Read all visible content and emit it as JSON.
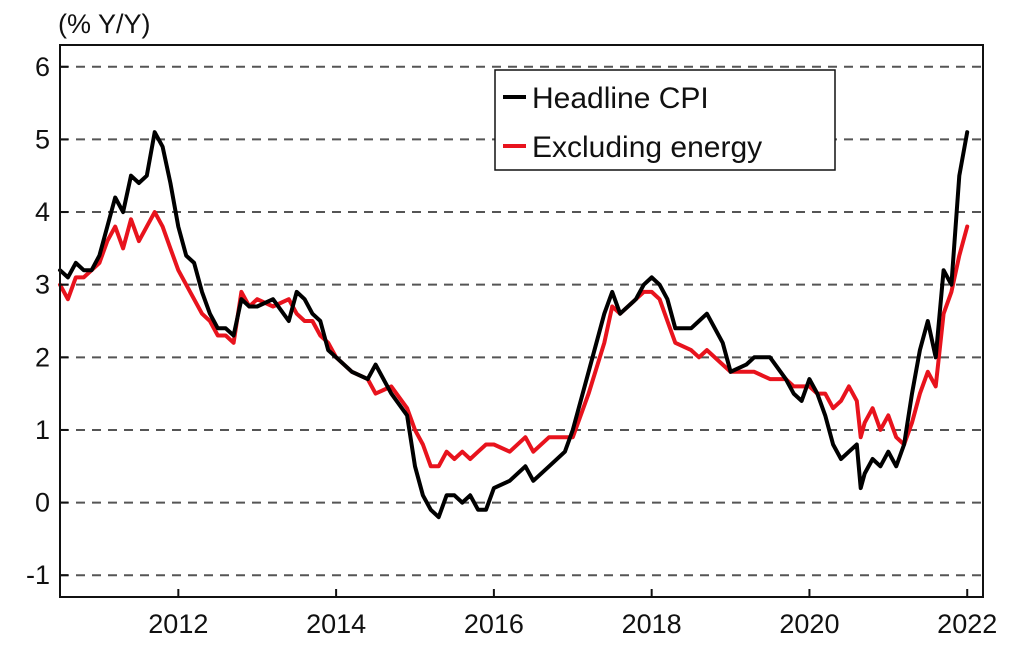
{
  "chart_data": {
    "type": "line",
    "unit_label": "(% Y/Y)",
    "x_ticks": [
      "2012",
      "2014",
      "2016",
      "2018",
      "2020",
      "2022"
    ],
    "y_ticks": [
      "6",
      "5",
      "4",
      "3",
      "2",
      "1",
      "0",
      "-1"
    ],
    "xlim": [
      2010.5,
      2022.2
    ],
    "ylim": [
      -1.3,
      6.3
    ],
    "grid": "horizontal dashed",
    "legend_position": "top-right",
    "series": [
      {
        "name": "Headline CPI",
        "color": "#000000",
        "points": [
          [
            2010.5,
            3.2
          ],
          [
            2010.6,
            3.1
          ],
          [
            2010.7,
            3.3
          ],
          [
            2010.8,
            3.2
          ],
          [
            2010.9,
            3.2
          ],
          [
            2011.0,
            3.4
          ],
          [
            2011.1,
            3.8
          ],
          [
            2011.2,
            4.2
          ],
          [
            2011.3,
            4.0
          ],
          [
            2011.4,
            4.5
          ],
          [
            2011.5,
            4.4
          ],
          [
            2011.6,
            4.5
          ],
          [
            2011.7,
            5.1
          ],
          [
            2011.8,
            4.9
          ],
          [
            2011.9,
            4.4
          ],
          [
            2012.0,
            3.8
          ],
          [
            2012.1,
            3.4
          ],
          [
            2012.2,
            3.3
          ],
          [
            2012.3,
            2.9
          ],
          [
            2012.4,
            2.6
          ],
          [
            2012.5,
            2.4
          ],
          [
            2012.6,
            2.4
          ],
          [
            2012.7,
            2.3
          ],
          [
            2012.8,
            2.8
          ],
          [
            2012.9,
            2.7
          ],
          [
            2013.0,
            2.7
          ],
          [
            2013.2,
            2.8
          ],
          [
            2013.4,
            2.5
          ],
          [
            2013.5,
            2.9
          ],
          [
            2013.6,
            2.8
          ],
          [
            2013.7,
            2.6
          ],
          [
            2013.8,
            2.5
          ],
          [
            2013.9,
            2.1
          ],
          [
            2014.0,
            2.0
          ],
          [
            2014.2,
            1.8
          ],
          [
            2014.4,
            1.7
          ],
          [
            2014.5,
            1.9
          ],
          [
            2014.7,
            1.5
          ],
          [
            2014.9,
            1.2
          ],
          [
            2015.0,
            0.5
          ],
          [
            2015.1,
            0.1
          ],
          [
            2015.2,
            -0.1
          ],
          [
            2015.3,
            -0.2
          ],
          [
            2015.4,
            0.1
          ],
          [
            2015.5,
            0.1
          ],
          [
            2015.6,
            0.0
          ],
          [
            2015.7,
            0.1
          ],
          [
            2015.8,
            -0.1
          ],
          [
            2015.9,
            -0.1
          ],
          [
            2016.0,
            0.2
          ],
          [
            2016.2,
            0.3
          ],
          [
            2016.4,
            0.5
          ],
          [
            2016.5,
            0.3
          ],
          [
            2016.7,
            0.5
          ],
          [
            2016.9,
            0.7
          ],
          [
            2017.0,
            1.0
          ],
          [
            2017.2,
            1.8
          ],
          [
            2017.4,
            2.6
          ],
          [
            2017.5,
            2.9
          ],
          [
            2017.6,
            2.6
          ],
          [
            2017.8,
            2.8
          ],
          [
            2017.9,
            3.0
          ],
          [
            2018.0,
            3.1
          ],
          [
            2018.1,
            3.0
          ],
          [
            2018.2,
            2.8
          ],
          [
            2018.3,
            2.4
          ],
          [
            2018.5,
            2.4
          ],
          [
            2018.6,
            2.5
          ],
          [
            2018.7,
            2.6
          ],
          [
            2018.9,
            2.2
          ],
          [
            2019.0,
            1.8
          ],
          [
            2019.2,
            1.9
          ],
          [
            2019.3,
            2.0
          ],
          [
            2019.5,
            2.0
          ],
          [
            2019.7,
            1.7
          ],
          [
            2019.8,
            1.5
          ],
          [
            2019.9,
            1.4
          ],
          [
            2020.0,
            1.7
          ],
          [
            2020.1,
            1.5
          ],
          [
            2020.2,
            1.2
          ],
          [
            2020.3,
            0.8
          ],
          [
            2020.4,
            0.6
          ],
          [
            2020.5,
            0.7
          ],
          [
            2020.6,
            0.8
          ],
          [
            2020.65,
            0.2
          ],
          [
            2020.7,
            0.4
          ],
          [
            2020.8,
            0.6
          ],
          [
            2020.9,
            0.5
          ],
          [
            2021.0,
            0.7
          ],
          [
            2021.1,
            0.5
          ],
          [
            2021.2,
            0.8
          ],
          [
            2021.3,
            1.5
          ],
          [
            2021.4,
            2.1
          ],
          [
            2021.5,
            2.5
          ],
          [
            2021.6,
            2.0
          ],
          [
            2021.7,
            3.2
          ],
          [
            2021.8,
            3.0
          ],
          [
            2021.9,
            4.5
          ],
          [
            2022.0,
            5.1
          ]
        ]
      },
      {
        "name": "Excluding energy",
        "color": "#e8131d",
        "points": [
          [
            2010.5,
            3.0
          ],
          [
            2010.6,
            2.8
          ],
          [
            2010.7,
            3.1
          ],
          [
            2010.8,
            3.1
          ],
          [
            2010.9,
            3.2
          ],
          [
            2011.0,
            3.3
          ],
          [
            2011.1,
            3.6
          ],
          [
            2011.2,
            3.8
          ],
          [
            2011.3,
            3.5
          ],
          [
            2011.4,
            3.9
          ],
          [
            2011.5,
            3.6
          ],
          [
            2011.6,
            3.8
          ],
          [
            2011.7,
            4.0
          ],
          [
            2011.8,
            3.8
          ],
          [
            2011.9,
            3.5
          ],
          [
            2012.0,
            3.2
          ],
          [
            2012.1,
            3.0
          ],
          [
            2012.2,
            2.8
          ],
          [
            2012.3,
            2.6
          ],
          [
            2012.4,
            2.5
          ],
          [
            2012.5,
            2.3
          ],
          [
            2012.6,
            2.3
          ],
          [
            2012.7,
            2.2
          ],
          [
            2012.8,
            2.9
          ],
          [
            2012.9,
            2.7
          ],
          [
            2013.0,
            2.8
          ],
          [
            2013.2,
            2.7
          ],
          [
            2013.4,
            2.8
          ],
          [
            2013.5,
            2.6
          ],
          [
            2013.6,
            2.5
          ],
          [
            2013.7,
            2.5
          ],
          [
            2013.8,
            2.3
          ],
          [
            2013.9,
            2.2
          ],
          [
            2014.0,
            2.0
          ],
          [
            2014.2,
            1.8
          ],
          [
            2014.4,
            1.7
          ],
          [
            2014.5,
            1.5
          ],
          [
            2014.7,
            1.6
          ],
          [
            2014.9,
            1.3
          ],
          [
            2015.0,
            1.0
          ],
          [
            2015.1,
            0.8
          ],
          [
            2015.2,
            0.5
          ],
          [
            2015.3,
            0.5
          ],
          [
            2015.4,
            0.7
          ],
          [
            2015.5,
            0.6
          ],
          [
            2015.6,
            0.7
          ],
          [
            2015.7,
            0.6
          ],
          [
            2015.8,
            0.7
          ],
          [
            2015.9,
            0.8
          ],
          [
            2016.0,
            0.8
          ],
          [
            2016.2,
            0.7
          ],
          [
            2016.4,
            0.9
          ],
          [
            2016.5,
            0.7
          ],
          [
            2016.7,
            0.9
          ],
          [
            2016.9,
            0.9
          ],
          [
            2017.0,
            0.9
          ],
          [
            2017.2,
            1.5
          ],
          [
            2017.4,
            2.2
          ],
          [
            2017.5,
            2.7
          ],
          [
            2017.6,
            2.6
          ],
          [
            2017.8,
            2.8
          ],
          [
            2017.9,
            2.9
          ],
          [
            2018.0,
            2.9
          ],
          [
            2018.1,
            2.8
          ],
          [
            2018.2,
            2.5
          ],
          [
            2018.3,
            2.2
          ],
          [
            2018.5,
            2.1
          ],
          [
            2018.6,
            2.0
          ],
          [
            2018.7,
            2.1
          ],
          [
            2018.9,
            1.9
          ],
          [
            2019.0,
            1.8
          ],
          [
            2019.2,
            1.8
          ],
          [
            2019.3,
            1.8
          ],
          [
            2019.5,
            1.7
          ],
          [
            2019.7,
            1.7
          ],
          [
            2019.8,
            1.6
          ],
          [
            2019.9,
            1.6
          ],
          [
            2020.0,
            1.6
          ],
          [
            2020.1,
            1.5
          ],
          [
            2020.2,
            1.5
          ],
          [
            2020.3,
            1.3
          ],
          [
            2020.4,
            1.4
          ],
          [
            2020.5,
            1.6
          ],
          [
            2020.6,
            1.4
          ],
          [
            2020.65,
            0.9
          ],
          [
            2020.7,
            1.1
          ],
          [
            2020.8,
            1.3
          ],
          [
            2020.9,
            1.0
          ],
          [
            2021.0,
            1.2
          ],
          [
            2021.1,
            0.9
          ],
          [
            2021.2,
            0.8
          ],
          [
            2021.3,
            1.1
          ],
          [
            2021.4,
            1.5
          ],
          [
            2021.5,
            1.8
          ],
          [
            2021.6,
            1.6
          ],
          [
            2021.7,
            2.6
          ],
          [
            2021.8,
            2.9
          ],
          [
            2021.9,
            3.4
          ],
          [
            2022.0,
            3.8
          ]
        ]
      }
    ]
  }
}
